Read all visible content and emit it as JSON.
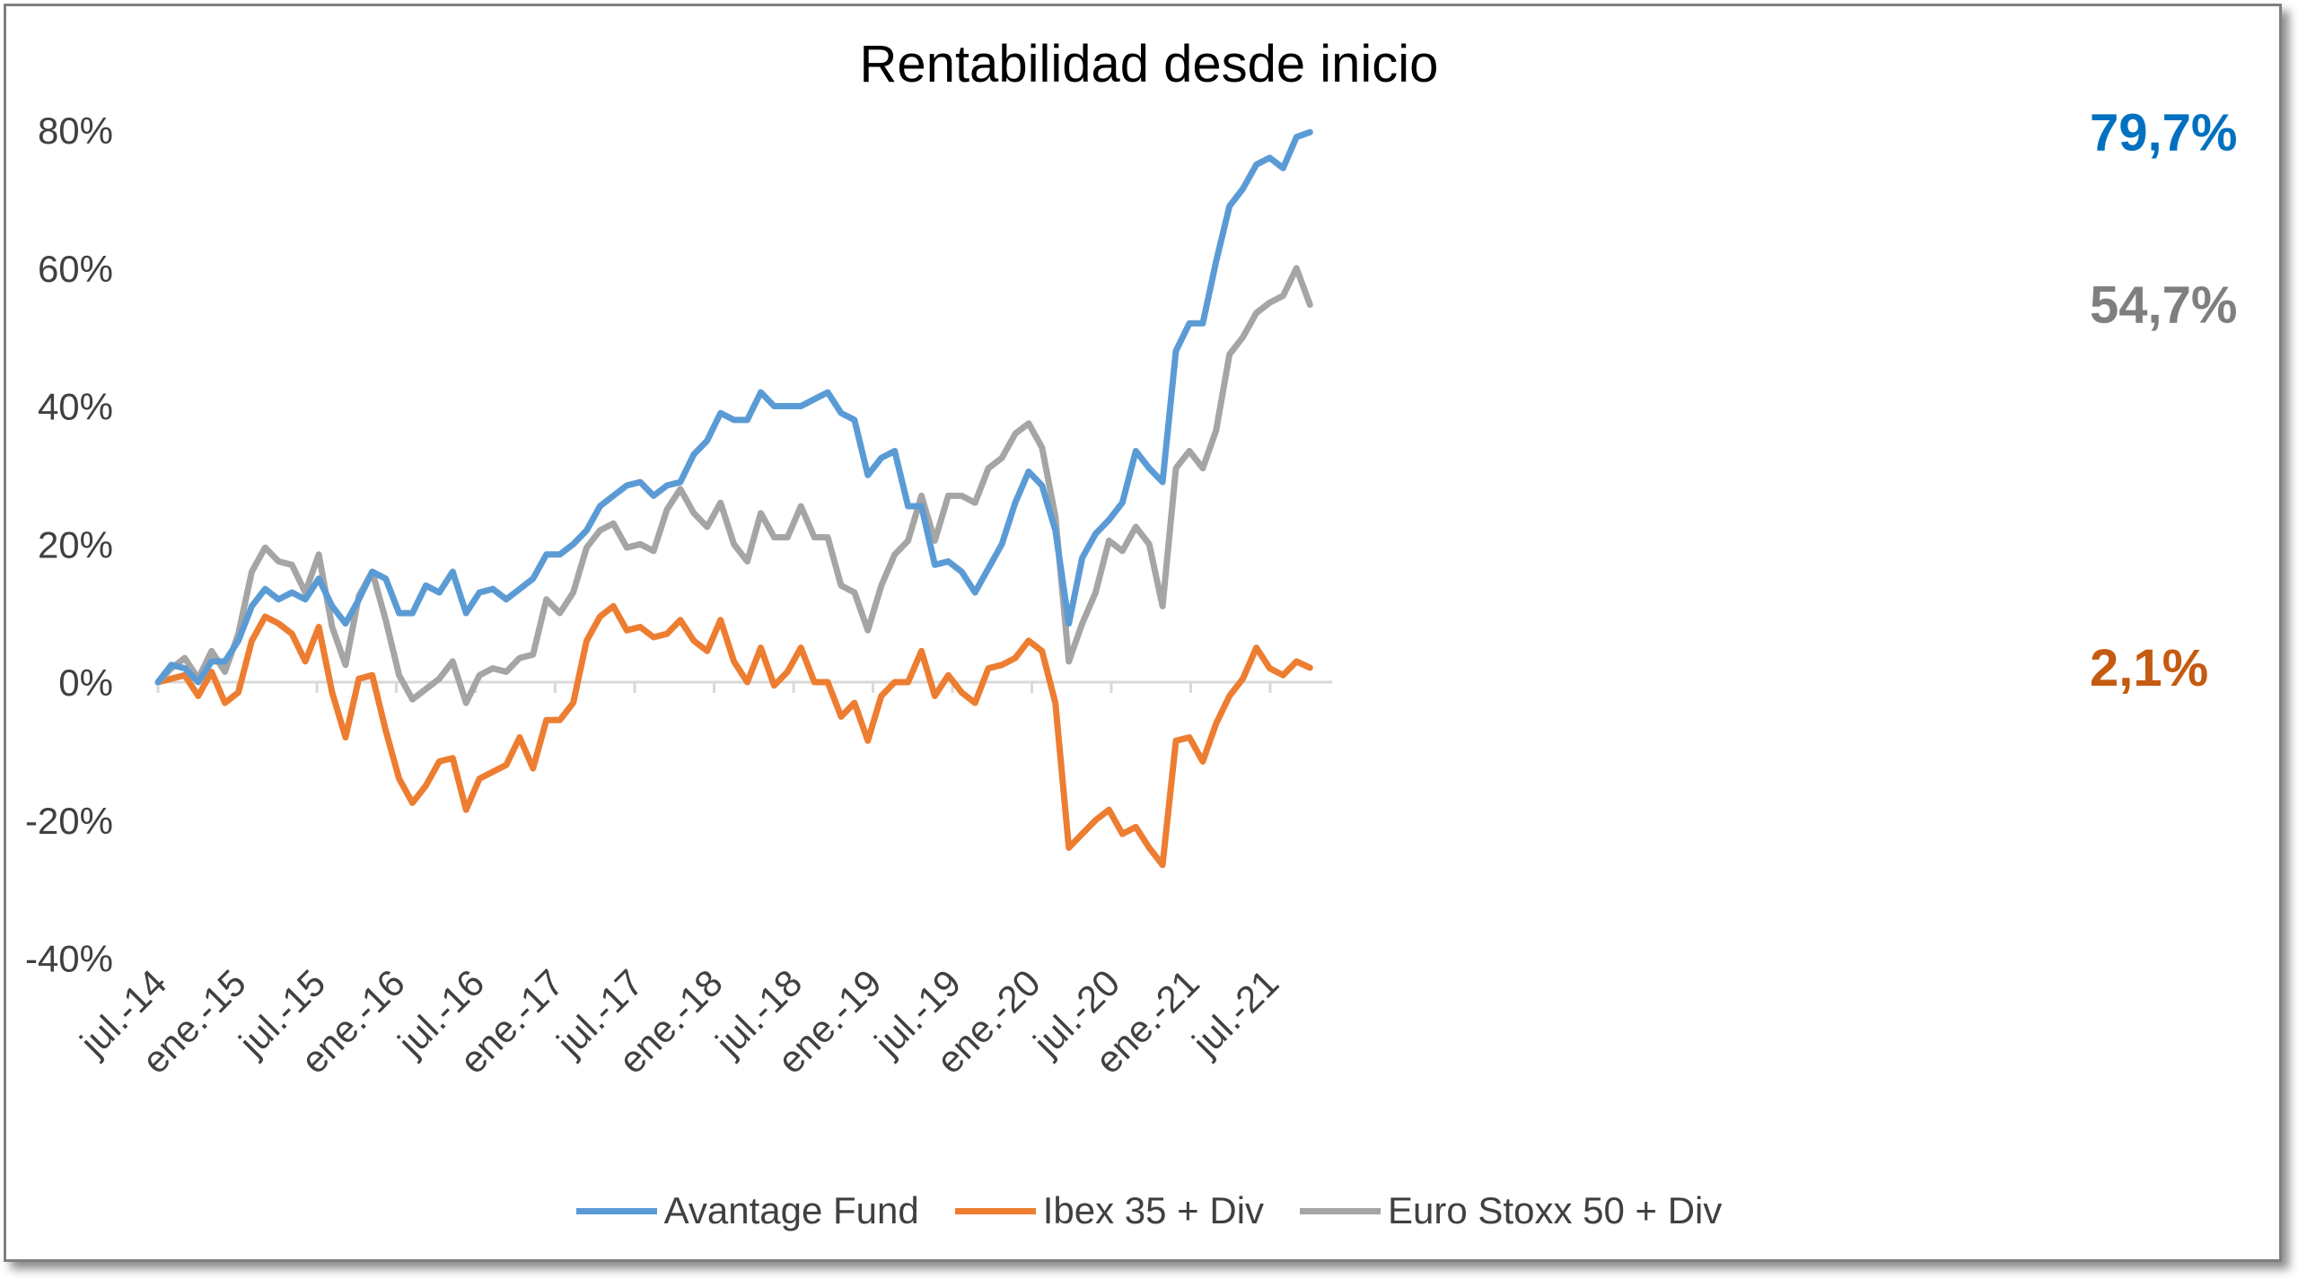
{
  "chart_data": {
    "type": "line",
    "title": "Rentabilidad desde inicio",
    "xlabel": "",
    "ylabel": "",
    "ylim": [
      -40,
      80
    ],
    "yticks": [
      "80%",
      "60%",
      "40%",
      "20%",
      "0%",
      "-20%",
      "-40%"
    ],
    "ytick_values": [
      80,
      60,
      40,
      20,
      0,
      -20,
      -40
    ],
    "x_tick_labels": [
      "jul.-14",
      "ene.-15",
      "jul.-15",
      "ene.-16",
      "jul.-16",
      "ene.-17",
      "jul.-17",
      "ene.-18",
      "jul.-18",
      "ene.-19",
      "jul.-19",
      "ene.-20",
      "jul.-20",
      "ene.-21",
      "jul.-21"
    ],
    "x_start": "2014-07",
    "x_end": "2021-10",
    "grid": false,
    "legend_position": "bottom",
    "series": [
      {
        "name": "Avantage Fund",
        "color": "#5b9bd5",
        "end_label": "79,7%",
        "end_label_color": "#0070c0",
        "values": [
          0,
          2.5,
          2,
          0,
          3,
          3,
          6,
          11,
          13.5,
          12,
          13,
          12,
          15,
          11,
          8.5,
          12,
          16,
          15,
          10,
          10,
          14,
          13,
          16,
          10,
          13,
          13.5,
          12,
          13.5,
          15,
          18.5,
          18.5,
          20,
          22,
          25.5,
          27,
          28.5,
          29,
          27,
          28.5,
          29,
          33,
          35,
          39,
          38,
          38,
          42,
          40,
          40,
          40,
          41,
          42,
          39,
          38,
          30,
          32.5,
          33.5,
          25.5,
          25.5,
          17,
          17.5,
          16,
          13,
          16.5,
          20,
          26,
          30.5,
          28.5,
          22,
          8.5,
          18,
          21.5,
          23.5,
          26,
          33.5,
          31,
          29,
          48,
          52,
          52,
          61,
          69,
          71.5,
          75,
          76,
          74.5,
          79,
          79.7
        ]
      },
      {
        "name": "Ibex 35 + Div",
        "color": "#ed7d31",
        "end_label": "2,1%",
        "end_label_color": "#c55a11",
        "values": [
          0,
          0.5,
          1,
          -2,
          1.5,
          -3,
          -1.5,
          6,
          9.5,
          8.5,
          7,
          3,
          8,
          -1.5,
          -8,
          0.5,
          1,
          -7,
          -14,
          -17.5,
          -15,
          -11.5,
          -11,
          -18.5,
          -14,
          -13,
          -12,
          -8,
          -12.5,
          -5.5,
          -5.5,
          -3,
          6,
          9.5,
          11,
          7.5,
          8,
          6.5,
          7,
          9,
          6,
          4.5,
          9,
          3,
          0,
          5,
          -0.5,
          1.5,
          5,
          0,
          0,
          -5,
          -3,
          -8.5,
          -2,
          0,
          0,
          4.5,
          -2,
          1,
          -1.5,
          -3,
          2,
          2.5,
          3.5,
          6,
          4.5,
          -3,
          -24,
          -22,
          -20,
          -18.5,
          -22,
          -21,
          -24,
          -26.5,
          -8.5,
          -8,
          -11.5,
          -6,
          -2,
          0.5,
          5,
          2,
          1,
          3,
          2.1
        ]
      },
      {
        "name": "Euro Stoxx 50 + Div",
        "color": "#a5a5a5",
        "end_label": "54,7%",
        "end_label_color": "#7f7f7f",
        "values": [
          0,
          2,
          3.5,
          0.5,
          4.5,
          1.5,
          7,
          16,
          19.5,
          17.5,
          17,
          13,
          18.5,
          8,
          2.5,
          12.5,
          16,
          9,
          1,
          -2.5,
          -1,
          0.5,
          3,
          -3,
          1,
          2,
          1.5,
          3.5,
          4,
          12,
          10,
          13,
          19.5,
          22,
          23,
          19.5,
          20,
          19,
          25,
          28,
          24.5,
          22.5,
          26,
          20,
          17.5,
          24.5,
          21,
          21,
          25.5,
          21,
          21,
          14,
          13,
          7.5,
          14,
          18.5,
          20.5,
          27,
          20.5,
          27,
          27,
          26,
          31,
          32.5,
          36,
          37.5,
          34,
          24,
          3,
          8.5,
          13,
          20.5,
          19,
          22.5,
          20,
          11,
          31,
          33.5,
          31,
          36.5,
          47.5,
          50,
          53.5,
          55,
          56,
          60,
          54.7
        ]
      }
    ]
  }
}
